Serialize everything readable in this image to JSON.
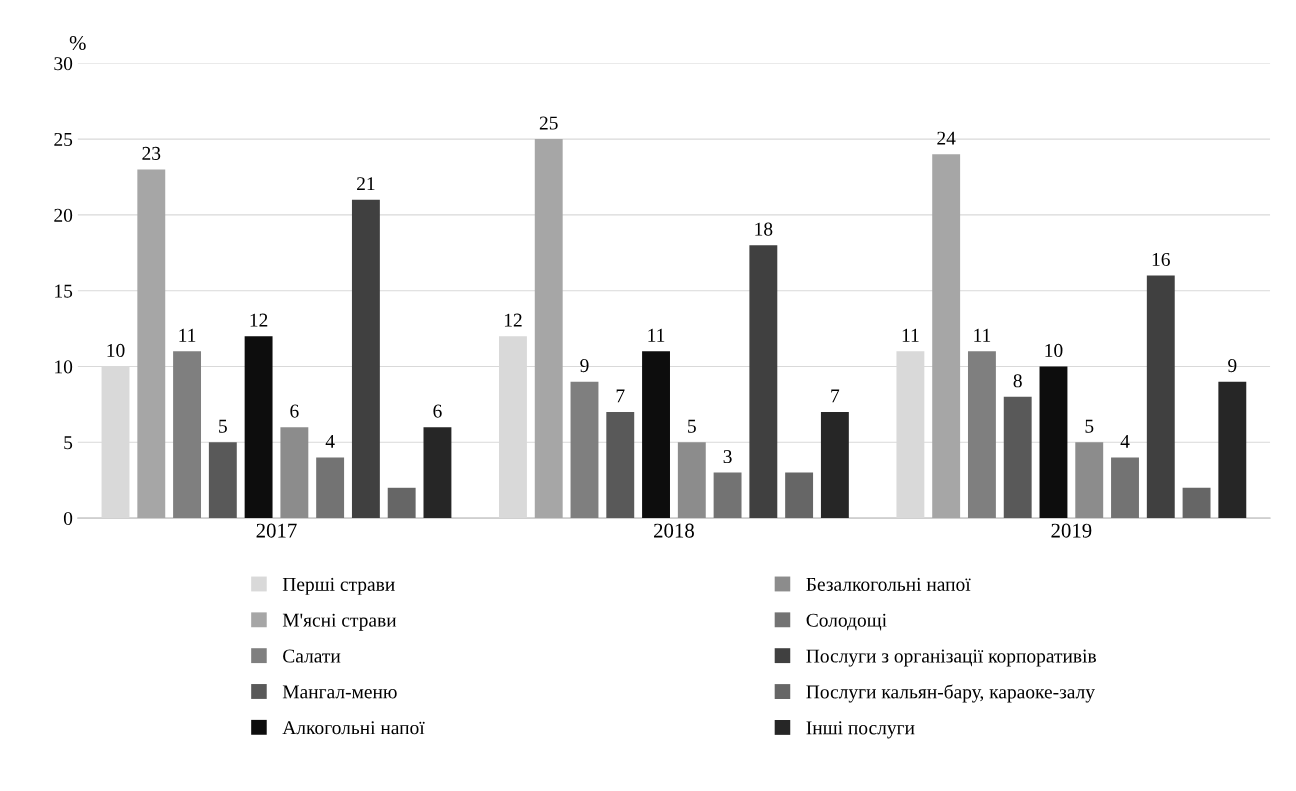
{
  "chart_data": {
    "type": "bar",
    "ylabel": "%",
    "categories": [
      "2017",
      "2018",
      "2019"
    ],
    "series": [
      {
        "name": "Перші страви",
        "color": "#d9d9d9",
        "values": [
          10,
          12,
          11
        ],
        "value_labels": [
          "10",
          "12",
          "11"
        ]
      },
      {
        "name": "М'ясні страви",
        "color": "#a6a6a6",
        "values": [
          23,
          25,
          24
        ],
        "value_labels": [
          "23",
          "25",
          "24"
        ]
      },
      {
        "name": "Салати",
        "color": "#7f7f7f",
        "values": [
          11,
          9,
          11
        ],
        "value_labels": [
          "11",
          "9",
          "11"
        ]
      },
      {
        "name": "Мангал-меню",
        "color": "#595959",
        "values": [
          5,
          7,
          8
        ],
        "value_labels": [
          "5",
          "7",
          "8"
        ]
      },
      {
        "name": "Алкогольні напої",
        "color": "#0d0d0d",
        "values": [
          12,
          11,
          10
        ],
        "value_labels": [
          "12",
          "11",
          "10"
        ]
      },
      {
        "name": "Безалкогольні напої",
        "color": "#8c8c8c",
        "values": [
          6,
          5,
          5
        ],
        "value_labels": [
          "6",
          "5",
          "5"
        ]
      },
      {
        "name": "Солодощі",
        "color": "#737373",
        "values": [
          4,
          3,
          4
        ],
        "value_labels": [
          "4",
          "3",
          "4"
        ]
      },
      {
        "name": "Послуги з організації корпоративів",
        "color": "#404040",
        "values": [
          21,
          18,
          16
        ],
        "value_labels": [
          "21",
          "18",
          "16"
        ]
      },
      {
        "name": "Послуги кальян-бару, караоке-залу",
        "color": "#666666",
        "values": [
          2,
          3,
          2
        ],
        "value_labels": [
          null,
          null,
          null
        ]
      },
      {
        "name": "Інші послуги",
        "color": "#262626",
        "values": [
          6,
          7,
          9
        ],
        "value_labels": [
          "6",
          "7",
          "9"
        ]
      }
    ],
    "ylim": [
      0,
      30
    ],
    "yticks": [
      0,
      5,
      10,
      15,
      20,
      25,
      30
    ],
    "grid": "y",
    "legend": "bottom"
  }
}
